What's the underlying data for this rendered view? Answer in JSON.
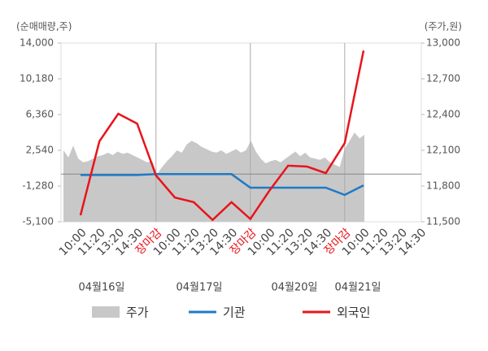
{
  "chart_data": {
    "type": "line",
    "y_label": "(순매매량,주)",
    "y2_label": "(주가,원)",
    "categories": [
      "10:00",
      "11:20",
      "13:20",
      "14:30",
      "장마감",
      "10:00",
      "11:20",
      "13:20",
      "14:30",
      "장마감",
      "10:00",
      "11:20",
      "13:20",
      "14:30",
      "장마감",
      "10:00",
      "11:20",
      "13:20",
      "14:30"
    ],
    "annotations": [
      "04월16일",
      "04월17일",
      "04월20일",
      "04월21일"
    ],
    "ylim": [
      -5100,
      14000
    ],
    "yticks": [
      {
        "value": 14000,
        "label": "14,000"
      },
      {
        "value": 10180,
        "label": "10,180"
      },
      {
        "value": 6360,
        "label": "6,360"
      },
      {
        "value": 2540,
        "label": "2,540"
      },
      {
        "value": -1280,
        "label": "-1,280"
      },
      {
        "value": -5100,
        "label": "-5,100"
      }
    ],
    "y2lim": [
      11500,
      13000
    ],
    "y2ticks": [
      {
        "value": 13000,
        "label": "13,000"
      },
      {
        "value": 12700,
        "label": "12,700"
      },
      {
        "value": 12400,
        "label": "12,400"
      },
      {
        "value": 12100,
        "label": "12,100"
      },
      {
        "value": 11800,
        "label": "11,800"
      },
      {
        "value": 11500,
        "label": "11,500"
      }
    ],
    "price": {
      "name": "주가",
      "color": "#c8c8c8",
      "axis": "y2",
      "values": [
        12100,
        12040,
        12140,
        12030,
        12000,
        12010,
        12030,
        12050,
        12060,
        12080,
        12060,
        12090,
        12070,
        12080,
        12060,
        12040,
        12020,
        12000,
        12010,
        11900,
        11960,
        12010,
        12050,
        12100,
        12080,
        12150,
        12180,
        12160,
        12130,
        12110,
        12090,
        12080,
        12100,
        12070,
        12090,
        12110,
        12080,
        12100,
        12180,
        12090,
        12030,
        11990,
        12010,
        12020,
        12000,
        12030,
        12060,
        12090,
        12050,
        12080,
        12040,
        12030,
        12020,
        12040,
        12000,
        11980,
        11960,
        12110,
        12180,
        12250,
        12200,
        12230
      ]
    },
    "series": [
      {
        "name": "기관",
        "color": "#1f7ac6",
        "values": [
          -100,
          -100,
          -100,
          -100,
          0,
          0,
          0,
          0,
          0,
          -1450,
          -1450,
          -1450,
          -1450,
          -1450,
          -2230,
          -1200,
          null,
          null,
          null
        ]
      },
      {
        "name": "외국인",
        "color": "#e8141c",
        "values": [
          -4400,
          3500,
          6450,
          5400,
          -150,
          -2500,
          -3000,
          -4900,
          -3000,
          -4800,
          -1800,
          900,
          800,
          100,
          3300,
          13200,
          null,
          null,
          null
        ]
      }
    ]
  }
}
